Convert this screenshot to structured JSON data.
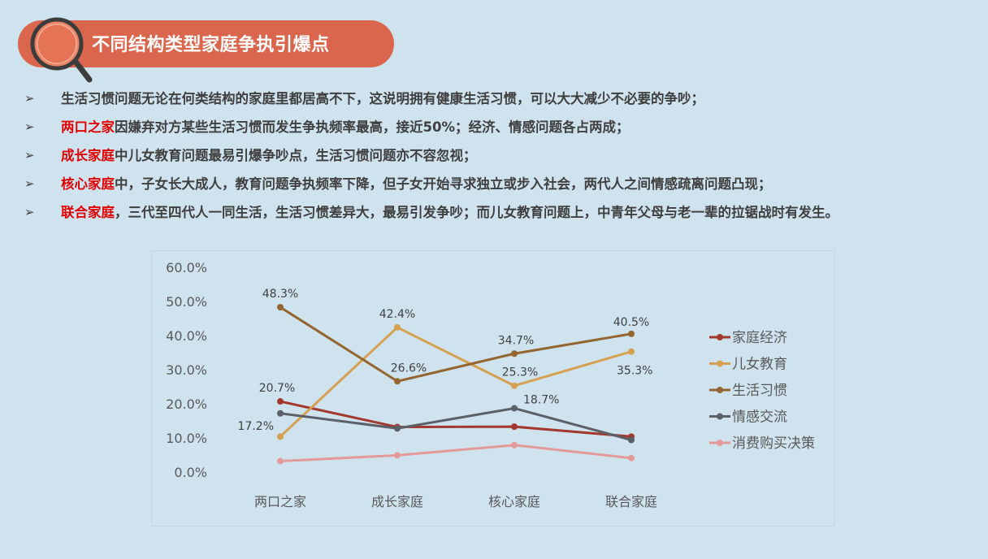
{
  "title": "不同结构类型家庭争执引爆点",
  "bullets": [
    {
      "highlight": "",
      "text": "生活习惯问题无论在何类结构的家庭里都居高不下，这说明拥有健康生活习惯，可以大大减少不必要的争吵；"
    },
    {
      "highlight": "两口之家",
      "text": "因嫌弃对方某些生活习惯而发生争执频率最高，接近50%；经济、情感问题各占两成；"
    },
    {
      "highlight": "成长家庭",
      "text": "中儿女教育问题最易引爆争吵点，生活习惯问题亦不容忽视；"
    },
    {
      "highlight": "核心家庭",
      "text": "中，子女长大成人，教育问题争执频率下降，但子女开始寻求独立或步入社会，两代人之间情感疏离问题凸现；"
    },
    {
      "highlight": "联合家庭",
      "text": "，三代至四代人一同生活，生活习惯差异大，最易引发争吵；而儿女教育问题上，中青年父母与老一辈的拉锯战时有发生。"
    }
  ],
  "bullet_marker": "➢",
  "chart_data": {
    "type": "line",
    "categories": [
      "两口之家",
      "成长家庭",
      "核心家庭",
      "联合家庭"
    ],
    "ylim": [
      0,
      60
    ],
    "yticks": [
      "0.0%",
      "10.0%",
      "20.0%",
      "30.0%",
      "40.0%",
      "50.0%",
      "60.0%"
    ],
    "legend_position": "right",
    "series": [
      {
        "name": "家庭经济",
        "color": "#a3392e",
        "values": [
          20.7,
          13.2,
          13.3,
          10.4
        ],
        "labels": [
          "20.7%",
          "",
          "",
          ""
        ]
      },
      {
        "name": "儿女教育",
        "color": "#d6a052",
        "values": [
          10.4,
          42.4,
          25.3,
          35.3
        ],
        "labels": [
          "",
          "42.4%",
          "25.3%",
          "35.3%"
        ]
      },
      {
        "name": "生活习惯",
        "color": "#94652e",
        "values": [
          48.3,
          26.6,
          34.7,
          40.5
        ],
        "labels": [
          "48.3%",
          "26.6%",
          "34.7%",
          "40.5%"
        ]
      },
      {
        "name": "情感交流",
        "color": "#5b5f66",
        "values": [
          17.2,
          12.8,
          18.7,
          9.4
        ],
        "labels": [
          "17.2%",
          "",
          "18.7%",
          ""
        ]
      },
      {
        "name": "消费购买决策",
        "color": "#e59a9a",
        "values": [
          3.2,
          4.9,
          7.9,
          4.1
        ],
        "labels": [
          "",
          "",
          "",
          ""
        ]
      }
    ]
  }
}
